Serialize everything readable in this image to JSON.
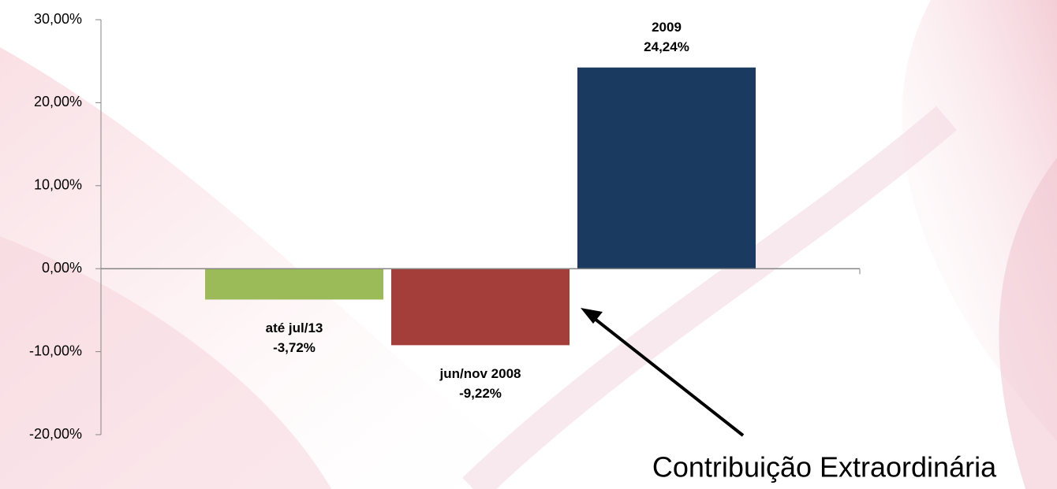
{
  "chart_data": {
    "type": "bar",
    "categories": [
      "até jul/13",
      "jun/nov 2008",
      "2009"
    ],
    "values": [
      -3.72,
      -9.22,
      24.24
    ],
    "value_labels": [
      "-3,72%",
      "-9,22%",
      "24,24%"
    ],
    "colors": [
      "#9bbb59",
      "#a33e3b",
      "#1b3a5f"
    ],
    "ylim": [
      -20,
      30
    ],
    "yticks": [
      {
        "value": -20,
        "label": "-20,00%"
      },
      {
        "value": -10,
        "label": "-10,00%"
      },
      {
        "value": 0,
        "label": "0,00%"
      },
      {
        "value": 10,
        "label": "10,00%"
      },
      {
        "value": 20,
        "label": "20,00%"
      },
      {
        "value": 30,
        "label": "30,00%"
      }
    ],
    "annotation": "Contribuição Extraordinária"
  }
}
